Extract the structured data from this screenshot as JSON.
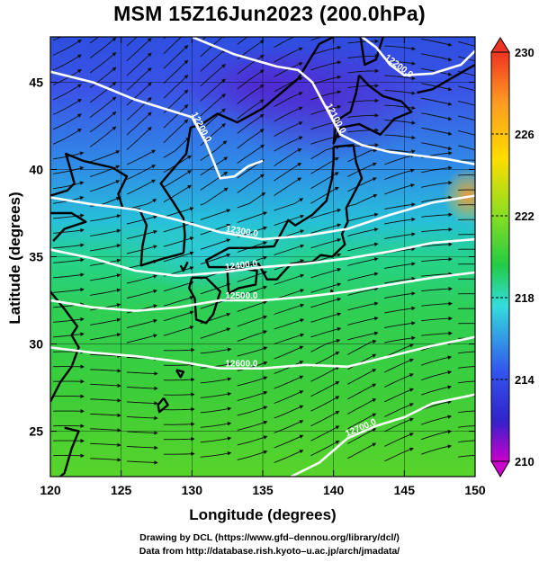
{
  "title": "MSM 15Z16Jun2023 (200.0hPa)",
  "axes": {
    "xlabel": "Longitude (degrees)",
    "ylabel": "Latitude  (degrees)",
    "xticks": [
      "120",
      "125",
      "130",
      "135",
      "140",
      "145",
      "150"
    ],
    "yticks": [
      "25",
      "30",
      "35",
      "40",
      "45"
    ],
    "xlim": [
      120,
      150
    ],
    "ylim": [
      22.4,
      47.6
    ]
  },
  "colorbar": {
    "ticks": [
      "230",
      "226",
      "222",
      "218",
      "214",
      "210"
    ],
    "range": [
      210,
      230
    ],
    "colors": [
      "#cc00cc",
      "#3355ee",
      "#33bbee",
      "#22cc44",
      "#88dd22",
      "#ffcc00",
      "#ee3322"
    ]
  },
  "contours": [
    {
      "label": "12200.0",
      "points": [
        [
          120,
          45.6
        ],
        [
          123,
          45.0
        ],
        [
          126,
          44.0
        ],
        [
          128,
          43.5
        ],
        [
          130,
          43.0
        ],
        [
          131,
          41.5
        ],
        [
          132,
          39.5
        ],
        [
          133,
          39.6
        ],
        [
          134,
          40.2
        ],
        [
          135,
          40.5
        ]
      ]
    },
    {
      "label": "12100.0",
      "points": [
        [
          130,
          47.6
        ],
        [
          133,
          46.6
        ],
        [
          136,
          45.9
        ],
        [
          137.5,
          45.7
        ],
        [
          138.5,
          45.0
        ],
        [
          139.5,
          43.5
        ],
        [
          140.5,
          42.0
        ],
        [
          142,
          41.4
        ],
        [
          144,
          41.0
        ],
        [
          146,
          40.8
        ],
        [
          148,
          40.6
        ],
        [
          150,
          40.3
        ]
      ]
    },
    {
      "label": "12200.0",
      "points": [
        [
          142,
          47.6
        ],
        [
          143,
          47.0
        ],
        [
          144,
          46.0
        ],
        [
          145,
          45.4
        ],
        [
          147,
          45.5
        ],
        [
          149,
          46.0
        ],
        [
          150,
          46.8
        ]
      ]
    },
    {
      "label": "12300.0",
      "points": [
        [
          120,
          38.4
        ],
        [
          123,
          38.0
        ],
        [
          126,
          37.7
        ],
        [
          129,
          37.1
        ],
        [
          132,
          36.4
        ],
        [
          135,
          36.0
        ],
        [
          138,
          36.2
        ],
        [
          141,
          36.6
        ],
        [
          144,
          37.4
        ],
        [
          147,
          38.1
        ],
        [
          150,
          38.5
        ]
      ]
    },
    {
      "label": "12400.0",
      "points": [
        [
          120,
          35.4
        ],
        [
          123,
          34.9
        ],
        [
          126,
          34.2
        ],
        [
          129,
          33.9
        ],
        [
          132,
          34.1
        ],
        [
          135,
          34.4
        ],
        [
          138,
          34.6
        ],
        [
          141,
          34.9
        ],
        [
          144,
          35.3
        ],
        [
          147,
          35.8
        ],
        [
          150,
          36.0
        ]
      ]
    },
    {
      "label": "12500.0",
      "points": [
        [
          120,
          32.5
        ],
        [
          123,
          32.1
        ],
        [
          126,
          31.9
        ],
        [
          129,
          32.1
        ],
        [
          132,
          32.5
        ],
        [
          135,
          32.5
        ],
        [
          138,
          32.7
        ],
        [
          141,
          33.0
        ],
        [
          144,
          33.4
        ],
        [
          147,
          33.8
        ],
        [
          150,
          34.1
        ]
      ]
    },
    {
      "label": "12600.0",
      "points": [
        [
          120,
          29.8
        ],
        [
          123,
          29.5
        ],
        [
          126,
          29.3
        ],
        [
          129,
          29.0
        ],
        [
          132,
          28.6
        ],
        [
          135,
          28.6
        ],
        [
          138,
          28.8
        ],
        [
          141,
          28.7
        ],
        [
          144,
          29.3
        ],
        [
          147,
          29.9
        ],
        [
          150,
          30.4
        ]
      ]
    },
    {
      "label": "12700.0",
      "points": [
        [
          137,
          22.4
        ],
        [
          139,
          23.2
        ],
        [
          141,
          24.6
        ],
        [
          143,
          25.3
        ],
        [
          145,
          25.8
        ],
        [
          147,
          26.6
        ],
        [
          150,
          27.1
        ]
      ]
    }
  ],
  "coastlines": [
    [
      [
        141.8,
        45.4
      ],
      [
        142.5,
        44.8
      ],
      [
        143.5,
        44.2
      ],
      [
        144.8,
        43.9
      ],
      [
        145.5,
        43.3
      ],
      [
        144.3,
        42.9
      ],
      [
        143.3,
        42.0
      ],
      [
        141.8,
        42.6
      ],
      [
        140.5,
        42.4
      ],
      [
        140.0,
        41.5
      ],
      [
        140.2,
        42.8
      ],
      [
        141.2,
        43.3
      ],
      [
        141.6,
        44.4
      ],
      [
        141.8,
        45.4
      ]
    ],
    [
      [
        140.0,
        41.3
      ],
      [
        141.4,
        41.4
      ],
      [
        141.6,
        40.4
      ],
      [
        142.0,
        39.5
      ],
      [
        141.3,
        38.4
      ],
      [
        140.9,
        37.8
      ],
      [
        141.0,
        37.0
      ],
      [
        140.6,
        36.3
      ],
      [
        140.8,
        35.7
      ],
      [
        139.9,
        35.0
      ],
      [
        139.1,
        35.1
      ],
      [
        138.5,
        34.7
      ],
      [
        137.0,
        34.6
      ],
      [
        136.0,
        33.7
      ],
      [
        135.3,
        33.7
      ],
      [
        134.7,
        34.6
      ],
      [
        133.0,
        34.4
      ],
      [
        131.2,
        34.4
      ],
      [
        131.0,
        34.8
      ],
      [
        132.6,
        35.5
      ],
      [
        134.0,
        35.5
      ],
      [
        135.8,
        35.6
      ],
      [
        136.8,
        37.1
      ],
      [
        137.3,
        36.8
      ],
      [
        138.5,
        37.4
      ],
      [
        139.5,
        38.2
      ],
      [
        139.9,
        39.5
      ],
      [
        140.0,
        40.5
      ],
      [
        140.0,
        41.3
      ]
    ],
    [
      [
        132.5,
        34.2
      ],
      [
        133.6,
        34.3
      ],
      [
        134.6,
        34.2
      ],
      [
        134.5,
        33.4
      ],
      [
        133.3,
        33.2
      ],
      [
        132.6,
        32.9
      ],
      [
        132.5,
        34.2
      ]
    ],
    [
      [
        130.0,
        33.8
      ],
      [
        131.0,
        33.8
      ],
      [
        132.0,
        33.0
      ],
      [
        131.5,
        31.7
      ],
      [
        131.0,
        31.2
      ],
      [
        130.3,
        31.4
      ],
      [
        130.2,
        32.6
      ],
      [
        129.8,
        33.2
      ],
      [
        130.0,
        33.8
      ]
    ],
    [
      [
        129.4,
        35.2
      ],
      [
        129.5,
        36.2
      ],
      [
        129.4,
        37.2
      ],
      [
        128.7,
        38.1
      ],
      [
        127.8,
        39.2
      ],
      [
        129.6,
        40.9
      ],
      [
        129.9,
        42.4
      ],
      [
        130.7,
        42.6
      ],
      [
        131.8,
        43.2
      ],
      [
        133.2,
        42.7
      ],
      [
        135.0,
        43.5
      ],
      [
        137.5,
        45.2
      ],
      [
        139.0,
        47.2
      ],
      [
        140.0,
        47.6
      ]
    ],
    [
      [
        129.4,
        35.2
      ],
      [
        128.0,
        34.9
      ],
      [
        126.4,
        34.5
      ],
      [
        126.5,
        35.6
      ],
      [
        126.8,
        36.8
      ],
      [
        126.3,
        37.7
      ],
      [
        125.1,
        37.8
      ],
      [
        124.8,
        38.6
      ],
      [
        125.4,
        39.6
      ],
      [
        124.4,
        40.1
      ],
      [
        122.3,
        40.5
      ],
      [
        121.1,
        40.9
      ],
      [
        121.7,
        39.2
      ],
      [
        121.2,
        38.8
      ],
      [
        120.0,
        38.5
      ]
    ],
    [
      [
        120.0,
        37.5
      ],
      [
        121.5,
        37.5
      ],
      [
        122.5,
        37.0
      ],
      [
        121.0,
        36.6
      ],
      [
        120.2,
        35.9
      ]
    ],
    [
      [
        120.0,
        33.0
      ],
      [
        121.0,
        32.0
      ],
      [
        121.9,
        31.0
      ],
      [
        121.5,
        30.5
      ],
      [
        122.0,
        29.8
      ],
      [
        121.5,
        28.7
      ],
      [
        120.7,
        27.8
      ],
      [
        120.0,
        26.7
      ]
    ],
    [
      [
        121.0,
        25.2
      ],
      [
        122.0,
        25.0
      ],
      [
        121.5,
        24.0
      ],
      [
        121.0,
        22.6
      ],
      [
        120.7,
        22.4
      ]
    ],
    [
      [
        141.9,
        47.6
      ],
      [
        142.2,
        46.0
      ],
      [
        143.0,
        46.3
      ],
      [
        143.5,
        47.6
      ]
    ],
    [
      [
        128.0,
        26.9
      ],
      [
        128.3,
        26.5
      ],
      [
        127.7,
        26.1
      ],
      [
        127.6,
        26.5
      ],
      [
        128.0,
        26.9
      ]
    ],
    [
      [
        128.9,
        28.5
      ],
      [
        129.4,
        28.4
      ],
      [
        129.2,
        28.1
      ],
      [
        128.9,
        28.5
      ]
    ],
    [
      [
        139.8,
        33.1
      ],
      [
        139.9,
        33.0
      ],
      [
        139.8,
        32.9
      ]
    ],
    [
      [
        129.7,
        34.7
      ],
      [
        129.4,
        34.2
      ],
      [
        129.2,
        34.5
      ]
    ],
    [
      [
        145.9,
        44.4
      ],
      [
        147.0,
        44.6
      ],
      [
        148.7,
        45.4
      ],
      [
        150.0,
        46.0
      ]
    ]
  ],
  "credits": {
    "line1": "Drawing by DCL (https://www.gfd–dennou.org/library/dcl/)",
    "line2": "Data from http://database.rish.kyoto–u.ac.jp/arch/jmadata/"
  }
}
